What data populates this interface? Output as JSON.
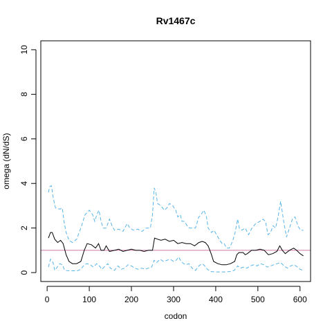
{
  "chart_data": {
    "type": "line",
    "title": "Rv1467c",
    "xlabel": "codon",
    "ylabel": "omega (dN/dS)",
    "xlim": [
      -15,
      625
    ],
    "ylim": [
      -0.4,
      10.4
    ],
    "xticks": [
      0,
      100,
      200,
      300,
      400,
      500,
      600
    ],
    "yticks": [
      0,
      2,
      4,
      6,
      8,
      10
    ],
    "reference_line": {
      "y": 1,
      "color": "#cc79a7"
    },
    "series": [
      {
        "role": "estimate",
        "color": "#000000",
        "dash": "solid",
        "points": [
          [
            3,
            1.55
          ],
          [
            8,
            1.8
          ],
          [
            12,
            1.8
          ],
          [
            18,
            1.5
          ],
          [
            25,
            1.35
          ],
          [
            32,
            1.45
          ],
          [
            38,
            1.3
          ],
          [
            45,
            0.8
          ],
          [
            52,
            0.5
          ],
          [
            60,
            0.4
          ],
          [
            70,
            0.4
          ],
          [
            80,
            0.5
          ],
          [
            88,
            1.0
          ],
          [
            95,
            1.3
          ],
          [
            105,
            1.25
          ],
          [
            115,
            1.1
          ],
          [
            122,
            1.3
          ],
          [
            128,
            1.0
          ],
          [
            135,
            1.0
          ],
          [
            140,
            1.2
          ],
          [
            148,
            0.95
          ],
          [
            160,
            1.0
          ],
          [
            170,
            1.05
          ],
          [
            180,
            0.95
          ],
          [
            190,
            1.0
          ],
          [
            200,
            1.05
          ],
          [
            210,
            1.0
          ],
          [
            220,
            1.0
          ],
          [
            230,
            0.95
          ],
          [
            240,
            1.0
          ],
          [
            250,
            1.0
          ],
          [
            255,
            1.55
          ],
          [
            262,
            1.5
          ],
          [
            270,
            1.45
          ],
          [
            280,
            1.5
          ],
          [
            290,
            1.4
          ],
          [
            300,
            1.45
          ],
          [
            310,
            1.3
          ],
          [
            320,
            1.35
          ],
          [
            330,
            1.3
          ],
          [
            340,
            1.3
          ],
          [
            350,
            1.2
          ],
          [
            360,
            1.35
          ],
          [
            368,
            1.4
          ],
          [
            375,
            1.35
          ],
          [
            382,
            1.2
          ],
          [
            390,
            0.8
          ],
          [
            395,
            0.5
          ],
          [
            405,
            0.4
          ],
          [
            415,
            0.35
          ],
          [
            425,
            0.35
          ],
          [
            435,
            0.4
          ],
          [
            445,
            0.5
          ],
          [
            450,
            0.8
          ],
          [
            455,
            0.9
          ],
          [
            465,
            0.9
          ],
          [
            470,
            0.8
          ],
          [
            475,
            0.85
          ],
          [
            485,
            1.0
          ],
          [
            495,
            1.0
          ],
          [
            505,
            1.05
          ],
          [
            515,
            1.0
          ],
          [
            525,
            0.8
          ],
          [
            535,
            0.85
          ],
          [
            545,
            0.95
          ],
          [
            552,
            1.2
          ],
          [
            558,
            1.0
          ],
          [
            565,
            0.85
          ],
          [
            575,
            1.0
          ],
          [
            585,
            1.1
          ],
          [
            592,
            1.0
          ],
          [
            600,
            0.85
          ],
          [
            608,
            0.75
          ]
        ]
      },
      {
        "role": "upper",
        "color": "#56b4e9",
        "dash": "dashed",
        "points": [
          [
            3,
            3.6
          ],
          [
            6,
            3.85
          ],
          [
            10,
            3.9
          ],
          [
            15,
            3.3
          ],
          [
            20,
            2.9
          ],
          [
            30,
            2.85
          ],
          [
            36,
            2.9
          ],
          [
            40,
            2.3
          ],
          [
            45,
            1.8
          ],
          [
            52,
            1.45
          ],
          [
            60,
            1.35
          ],
          [
            70,
            1.5
          ],
          [
            80,
            2.0
          ],
          [
            90,
            2.6
          ],
          [
            100,
            2.8
          ],
          [
            108,
            2.6
          ],
          [
            113,
            2.3
          ],
          [
            118,
            2.6
          ],
          [
            123,
            2.8
          ],
          [
            128,
            2.3
          ],
          [
            133,
            2.0
          ],
          [
            140,
            2.0
          ],
          [
            148,
            2.4
          ],
          [
            154,
            2.1
          ],
          [
            160,
            1.9
          ],
          [
            170,
            1.95
          ],
          [
            180,
            1.85
          ],
          [
            190,
            2.2
          ],
          [
            196,
            2.0
          ],
          [
            205,
            1.9
          ],
          [
            215,
            1.95
          ],
          [
            225,
            1.85
          ],
          [
            235,
            2.0
          ],
          [
            245,
            2.0
          ],
          [
            250,
            2.6
          ],
          [
            254,
            3.8
          ],
          [
            258,
            3.6
          ],
          [
            262,
            3.1
          ],
          [
            270,
            3.0
          ],
          [
            278,
            2.8
          ],
          [
            284,
            2.9
          ],
          [
            290,
            3.1
          ],
          [
            298,
            3.0
          ],
          [
            305,
            2.8
          ],
          [
            310,
            2.5
          ],
          [
            316,
            2.6
          ],
          [
            320,
            2.3
          ],
          [
            326,
            2.3
          ],
          [
            332,
            2.1
          ],
          [
            338,
            2.0
          ],
          [
            345,
            2.0
          ],
          [
            352,
            2.0
          ],
          [
            360,
            2.5
          ],
          [
            365,
            2.6
          ],
          [
            372,
            2.8
          ],
          [
            378,
            2.5
          ],
          [
            382,
            2.0
          ],
          [
            390,
            1.8
          ],
          [
            396,
            1.9
          ],
          [
            402,
            1.7
          ],
          [
            408,
            1.5
          ],
          [
            415,
            1.3
          ],
          [
            420,
            1.3
          ],
          [
            426,
            1.1
          ],
          [
            432,
            1.1
          ],
          [
            440,
            1.4
          ],
          [
            446,
            1.8
          ],
          [
            452,
            2.4
          ],
          [
            456,
            2.0
          ],
          [
            462,
            1.9
          ],
          [
            470,
            2.0
          ],
          [
            478,
            1.7
          ],
          [
            486,
            2.0
          ],
          [
            495,
            2.2
          ],
          [
            505,
            2.3
          ],
          [
            512,
            2.4
          ],
          [
            518,
            2.3
          ],
          [
            524,
            1.7
          ],
          [
            530,
            1.8
          ],
          [
            536,
            2.1
          ],
          [
            542,
            2.0
          ],
          [
            548,
            2.5
          ],
          [
            554,
            3.2
          ],
          [
            558,
            2.7
          ],
          [
            562,
            2.2
          ],
          [
            568,
            1.6
          ],
          [
            575,
            2.0
          ],
          [
            582,
            2.4
          ],
          [
            588,
            2.5
          ],
          [
            595,
            2.1
          ],
          [
            601,
            1.9
          ],
          [
            608,
            1.9
          ]
        ]
      },
      {
        "role": "lower",
        "color": "#56b4e9",
        "dash": "dashed",
        "points": [
          [
            3,
            0.25
          ],
          [
            8,
            0.6
          ],
          [
            14,
            0.45
          ],
          [
            18,
            0.1
          ],
          [
            24,
            0.25
          ],
          [
            30,
            0.4
          ],
          [
            36,
            0.35
          ],
          [
            42,
            0.1
          ],
          [
            52,
            0.08
          ],
          [
            62,
            0.08
          ],
          [
            72,
            0.08
          ],
          [
            80,
            0.15
          ],
          [
            88,
            0.35
          ],
          [
            95,
            0.4
          ],
          [
            102,
            0.35
          ],
          [
            110,
            0.25
          ],
          [
            118,
            0.4
          ],
          [
            124,
            0.3
          ],
          [
            130,
            0.15
          ],
          [
            138,
            0.3
          ],
          [
            144,
            0.4
          ],
          [
            150,
            0.2
          ],
          [
            160,
            0.1
          ],
          [
            168,
            0.3
          ],
          [
            176,
            0.15
          ],
          [
            184,
            0.2
          ],
          [
            192,
            0.35
          ],
          [
            200,
            0.3
          ],
          [
            208,
            0.2
          ],
          [
            216,
            0.15
          ],
          [
            224,
            0.2
          ],
          [
            232,
            0.15
          ],
          [
            240,
            0.2
          ],
          [
            248,
            0.25
          ],
          [
            254,
            0.55
          ],
          [
            260,
            0.45
          ],
          [
            268,
            0.6
          ],
          [
            276,
            0.5
          ],
          [
            284,
            0.55
          ],
          [
            292,
            0.6
          ],
          [
            300,
            0.5
          ],
          [
            306,
            0.55
          ],
          [
            312,
            0.7
          ],
          [
            318,
            0.5
          ],
          [
            324,
            0.4
          ],
          [
            330,
            0.35
          ],
          [
            336,
            0.4
          ],
          [
            344,
            0.2
          ],
          [
            352,
            0.1
          ],
          [
            360,
            0.3
          ],
          [
            368,
            0.4
          ],
          [
            374,
            0.3
          ],
          [
            380,
            0.15
          ],
          [
            388,
            0.05
          ],
          [
            398,
            0.03
          ],
          [
            410,
            0.03
          ],
          [
            422,
            0.03
          ],
          [
            434,
            0.05
          ],
          [
            444,
            0.1
          ],
          [
            452,
            0.3
          ],
          [
            458,
            0.2
          ],
          [
            466,
            0.25
          ],
          [
            474,
            0.2
          ],
          [
            482,
            0.3
          ],
          [
            490,
            0.35
          ],
          [
            498,
            0.3
          ],
          [
            506,
            0.4
          ],
          [
            514,
            0.35
          ],
          [
            522,
            0.25
          ],
          [
            530,
            0.3
          ],
          [
            538,
            0.35
          ],
          [
            546,
            0.4
          ],
          [
            554,
            0.45
          ],
          [
            562,
            0.3
          ],
          [
            570,
            0.2
          ],
          [
            578,
            0.3
          ],
          [
            586,
            0.35
          ],
          [
            594,
            0.25
          ],
          [
            600,
            0.15
          ],
          [
            608,
            0.1
          ]
        ]
      }
    ]
  }
}
